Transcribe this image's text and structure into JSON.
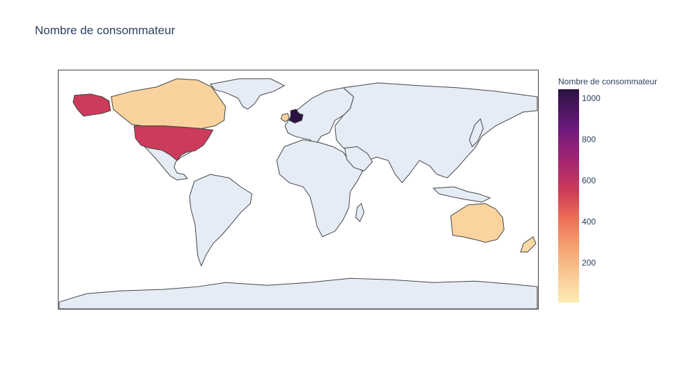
{
  "chart_data": {
    "type": "choropleth",
    "title": "Nombre de consommateur",
    "colorbar_title": "Nombre de consommateur",
    "colorbar_ticks": [
      "1000",
      "800",
      "600",
      "400",
      "200"
    ],
    "color_scale": [
      "#fcebb2",
      "#fad29e",
      "#f5a673",
      "#ec6c55",
      "#d03b58",
      "#9f2474",
      "#6a1a7c",
      "#2b1240"
    ],
    "zmin": 0,
    "zmax": 1040,
    "land_color": "#e5ecf6",
    "border_color": "#444444",
    "regions": [
      {
        "country": "United Kingdom",
        "value": 1040,
        "color": "#2b1240"
      },
      {
        "country": "United States",
        "value": 590,
        "color": "#cd3b5a"
      },
      {
        "country": "Canada",
        "value": 120,
        "color": "#fad29e"
      },
      {
        "country": "Australia",
        "value": 110,
        "color": "#fad39f"
      },
      {
        "country": "New Zealand",
        "value": 100,
        "color": "#fbd9a3"
      },
      {
        "country": "Ireland",
        "value": 110,
        "color": "#fad29e"
      }
    ]
  }
}
